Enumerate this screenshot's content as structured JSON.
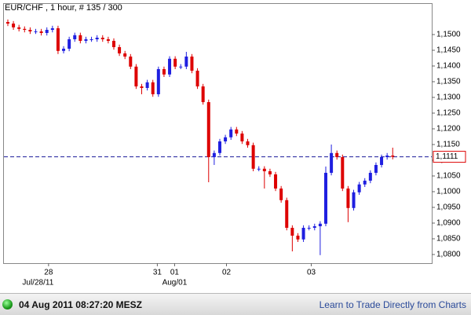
{
  "chart_data": {
    "type": "candlestick",
    "title": "EUR/CHF , 1 hour, # 135 / 300",
    "up_color": "#1f1fe0",
    "down_color": "#dd0000",
    "open": [
      1.154,
      1.1535,
      1.1523,
      1.1518,
      1.1515,
      1.151,
      1.151,
      1.1505,
      1.1515,
      1.152,
      1.1448,
      1.1455,
      1.1485,
      1.1498,
      1.148,
      1.1485,
      1.1485,
      1.149,
      1.1485,
      1.148,
      1.146,
      1.144,
      1.143,
      1.1398,
      1.1335,
      1.133,
      1.1348,
      1.131,
      1.139,
      1.1373,
      1.1423,
      1.1398,
      1.1398,
      1.143,
      1.1385,
      1.1335,
      1.1285,
      1.111,
      1.1123,
      1.116,
      1.1173,
      1.1198,
      1.1185,
      1.116,
      1.1148,
      1.1073,
      1.1073,
      1.1065,
      1.1055,
      1.101,
      1.0973,
      1.0885,
      1.086,
      1.0848,
      1.0885,
      1.0885,
      1.089,
      1.0898,
      1.106,
      1.1123,
      1.111,
      1.101,
      1.0948,
      1.0998,
      1.1023,
      1.1035,
      1.106,
      1.1085,
      1.111,
      1.1115
    ],
    "high": [
      1.1548,
      1.1543,
      1.1531,
      1.1526,
      1.1523,
      1.1518,
      1.1518,
      1.1523,
      1.1528,
      1.1528,
      1.1463,
      1.1493,
      1.1506,
      1.1506,
      1.1493,
      1.1493,
      1.1498,
      1.1498,
      1.1493,
      1.1488,
      1.1468,
      1.1448,
      1.1438,
      1.1406,
      1.1343,
      1.1356,
      1.1356,
      1.1398,
      1.1398,
      1.1431,
      1.1431,
      1.1406,
      1.1445,
      1.1438,
      1.1393,
      1.1343,
      1.1293,
      1.1131,
      1.1168,
      1.1181,
      1.1206,
      1.1206,
      1.1193,
      1.1168,
      1.1156,
      1.1081,
      1.1081,
      1.1073,
      1.1063,
      1.1018,
      1.0981,
      1.0893,
      1.0868,
      1.0893,
      1.0893,
      1.0898,
      1.0906,
      1.108,
      1.115,
      1.1131,
      1.1118,
      1.1018,
      1.1006,
      1.1031,
      1.1043,
      1.1068,
      1.1093,
      1.1118,
      1.1123,
      1.114
    ],
    "low": [
      1.1527,
      1.1515,
      1.151,
      1.1507,
      1.1502,
      1.1502,
      1.1497,
      1.1497,
      1.1507,
      1.1438,
      1.144,
      1.1447,
      1.1477,
      1.1472,
      1.1472,
      1.1477,
      1.1477,
      1.1477,
      1.1472,
      1.1452,
      1.1432,
      1.1422,
      1.139,
      1.1327,
      1.131,
      1.1322,
      1.1302,
      1.1302,
      1.1365,
      1.1365,
      1.139,
      1.139,
      1.139,
      1.1377,
      1.1327,
      1.1277,
      1.103,
      1.1085,
      1.1115,
      1.1152,
      1.1165,
      1.1177,
      1.1152,
      1.114,
      1.1065,
      1.1065,
      1.101,
      1.1047,
      1.1002,
      1.0965,
      1.0877,
      1.081,
      1.084,
      1.084,
      1.0877,
      1.0877,
      1.0798,
      1.089,
      1.1052,
      1.1102,
      1.1002,
      1.0903,
      1.094,
      1.099,
      1.1015,
      1.1027,
      1.1052,
      1.1077,
      1.1102,
      1.1103
    ],
    "close": [
      1.1535,
      1.1523,
      1.1518,
      1.1515,
      1.151,
      1.151,
      1.1505,
      1.1515,
      1.152,
      1.1448,
      1.1455,
      1.1485,
      1.1498,
      1.148,
      1.1485,
      1.1485,
      1.149,
      1.1485,
      1.148,
      1.146,
      1.144,
      1.143,
      1.1398,
      1.1335,
      1.133,
      1.1348,
      1.131,
      1.139,
      1.1373,
      1.1423,
      1.1398,
      1.1398,
      1.143,
      1.1385,
      1.1335,
      1.1285,
      1.111,
      1.1123,
      1.116,
      1.1173,
      1.1198,
      1.1185,
      1.116,
      1.1148,
      1.1073,
      1.1073,
      1.1065,
      1.1055,
      1.101,
      1.0973,
      1.0885,
      1.086,
      1.0848,
      1.0885,
      1.0885,
      1.089,
      1.0898,
      1.106,
      1.1123,
      1.111,
      1.101,
      1.0948,
      1.0998,
      1.1023,
      1.1035,
      1.106,
      1.1085,
      1.111,
      1.1115,
      1.1111
    ],
    "xlim": [
      -0.7,
      76
    ],
    "xticks": [
      {
        "value": 7.3,
        "label": "28"
      },
      {
        "value": 26.8,
        "label": "31"
      },
      {
        "value": 29.9,
        "label": "01"
      },
      {
        "value": 39.2,
        "label": "02"
      },
      {
        "value": 54.4,
        "label": "03"
      }
    ],
    "xticks_secondary": [
      {
        "value": 5.4,
        "label": "Jul/28/11"
      },
      {
        "value": 29.9,
        "label": "Aug/01"
      }
    ],
    "ylim": [
      1.07725,
      1.15975
    ],
    "yticks": [
      {
        "value": 1.15,
        "label": "1,1500"
      },
      {
        "value": 1.145,
        "label": "1,1450"
      },
      {
        "value": 1.14,
        "label": "1,1400"
      },
      {
        "value": 1.135,
        "label": "1,1350"
      },
      {
        "value": 1.13,
        "label": "1,1300"
      },
      {
        "value": 1.125,
        "label": "1,1250"
      },
      {
        "value": 1.12,
        "label": "1,1200"
      },
      {
        "value": 1.115,
        "label": "1,1150"
      },
      {
        "value": 1.11,
        "label": "1,1100"
      },
      {
        "value": 1.105,
        "label": "1,1050"
      },
      {
        "value": 1.1,
        "label": "1,1000"
      },
      {
        "value": 1.095,
        "label": "1,0950"
      },
      {
        "value": 1.09,
        "label": "1,0900"
      },
      {
        "value": 1.085,
        "label": "1,0850"
      },
      {
        "value": 1.08,
        "label": "1,0800"
      }
    ],
    "last_price": {
      "value": 1.1111,
      "label": "1,1111"
    },
    "last_price_color": "#1a1a99"
  },
  "footer": {
    "timestamp": "04 Aug 2011 08:27:20 MESZ",
    "link": "Learn to Trade Directly from Charts"
  }
}
